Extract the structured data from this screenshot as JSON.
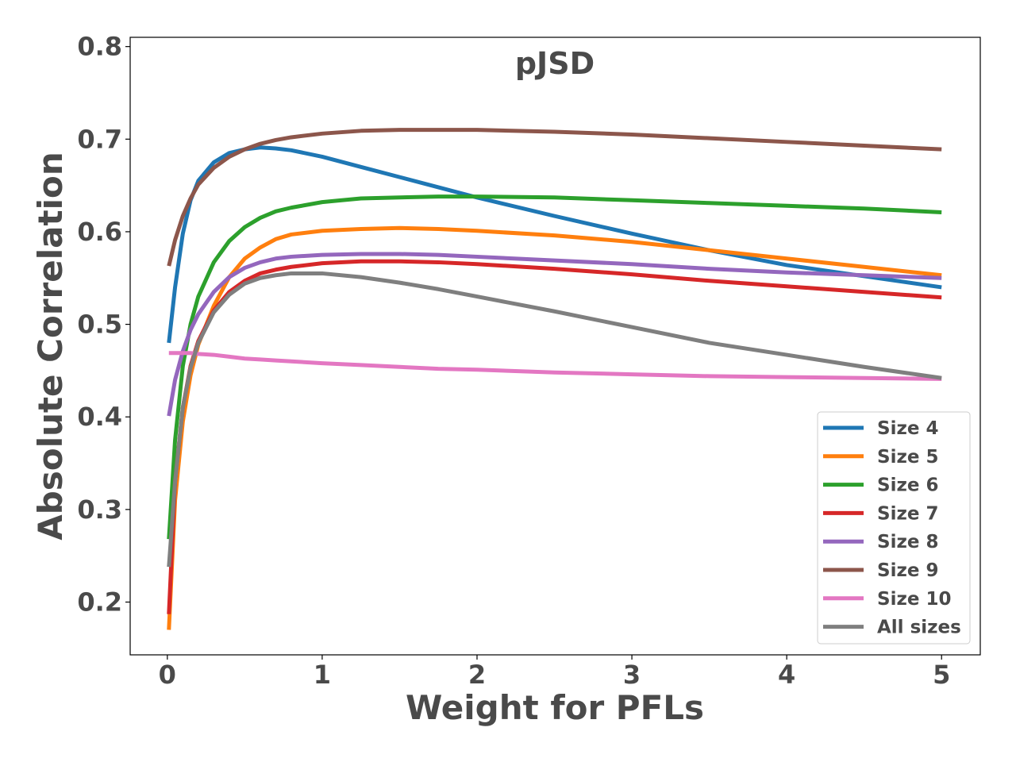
{
  "chart_data": {
    "type": "line",
    "title": "pJSD",
    "xlabel": "Weight for PFLs",
    "ylabel": "Absolute Correlation",
    "xlim": [
      -0.24,
      5.25
    ],
    "ylim": [
      0.143,
      0.81
    ],
    "xticks": [
      0,
      1,
      2,
      3,
      4,
      5
    ],
    "xtick_labels": [
      "0",
      "1",
      "2",
      "3",
      "4",
      "5"
    ],
    "yticks": [
      0.2,
      0.3,
      0.4,
      0.5,
      0.6,
      0.7,
      0.8
    ],
    "ytick_labels": [
      "0.2",
      "0.3",
      "0.4",
      "0.5",
      "0.6",
      "0.7",
      "0.8"
    ],
    "grid": false,
    "legend_position": "lower-right",
    "x": [
      0.01,
      0.05,
      0.1,
      0.15,
      0.2,
      0.3,
      0.4,
      0.5,
      0.6,
      0.7,
      0.8,
      1.0,
      1.25,
      1.5,
      1.75,
      2.0,
      2.5,
      3.0,
      3.5,
      4.0,
      4.5,
      5.0
    ],
    "series": [
      {
        "name": "Size 4",
        "color": "#1f77b4",
        "values": [
          0.48,
          0.54,
          0.598,
          0.634,
          0.655,
          0.675,
          0.685,
          0.689,
          0.691,
          0.69,
          0.688,
          0.681,
          0.67,
          0.659,
          0.648,
          0.637,
          0.617,
          0.598,
          0.58,
          0.564,
          0.552,
          0.54
        ]
      },
      {
        "name": "Size 5",
        "color": "#ff7f0e",
        "values": [
          0.17,
          0.31,
          0.395,
          0.445,
          0.478,
          0.52,
          0.551,
          0.571,
          0.583,
          0.592,
          0.597,
          0.601,
          0.603,
          0.604,
          0.603,
          0.601,
          0.596,
          0.589,
          0.58,
          0.571,
          0.562,
          0.553
        ]
      },
      {
        "name": "Size 6",
        "color": "#2ca02c",
        "values": [
          0.268,
          0.375,
          0.455,
          0.5,
          0.53,
          0.567,
          0.59,
          0.605,
          0.615,
          0.622,
          0.626,
          0.632,
          0.636,
          0.637,
          0.638,
          0.638,
          0.637,
          0.634,
          0.631,
          0.628,
          0.625,
          0.621
        ]
      },
      {
        "name": "Size 7",
        "color": "#d62728",
        "values": [
          0.187,
          0.33,
          0.41,
          0.455,
          0.482,
          0.515,
          0.535,
          0.547,
          0.555,
          0.559,
          0.562,
          0.566,
          0.568,
          0.568,
          0.567,
          0.565,
          0.56,
          0.554,
          0.547,
          0.541,
          0.535,
          0.529
        ]
      },
      {
        "name": "Size 8",
        "color": "#9467bd",
        "values": [
          0.401,
          0.44,
          0.471,
          0.494,
          0.511,
          0.535,
          0.551,
          0.561,
          0.567,
          0.571,
          0.573,
          0.575,
          0.576,
          0.576,
          0.575,
          0.573,
          0.569,
          0.565,
          0.56,
          0.556,
          0.553,
          0.55
        ]
      },
      {
        "name": "Size 9",
        "color": "#8c564b",
        "values": [
          0.563,
          0.591,
          0.617,
          0.636,
          0.651,
          0.669,
          0.681,
          0.689,
          0.695,
          0.699,
          0.702,
          0.706,
          0.709,
          0.71,
          0.71,
          0.71,
          0.708,
          0.705,
          0.701,
          0.697,
          0.693,
          0.689
        ]
      },
      {
        "name": "Size 10",
        "color": "#e377c2",
        "values": [
          0.469,
          0.469,
          0.469,
          0.469,
          0.468,
          0.467,
          0.465,
          0.463,
          0.462,
          0.461,
          0.46,
          0.458,
          0.456,
          0.454,
          0.452,
          0.451,
          0.448,
          0.446,
          0.444,
          0.443,
          0.442,
          0.441
        ]
      },
      {
        "name": "All sizes",
        "color": "#7f7f7f",
        "values": [
          0.238,
          0.33,
          0.41,
          0.453,
          0.48,
          0.513,
          0.532,
          0.544,
          0.55,
          0.553,
          0.555,
          0.555,
          0.551,
          0.545,
          0.538,
          0.53,
          0.514,
          0.497,
          0.48,
          0.467,
          0.454,
          0.442
        ]
      }
    ]
  }
}
